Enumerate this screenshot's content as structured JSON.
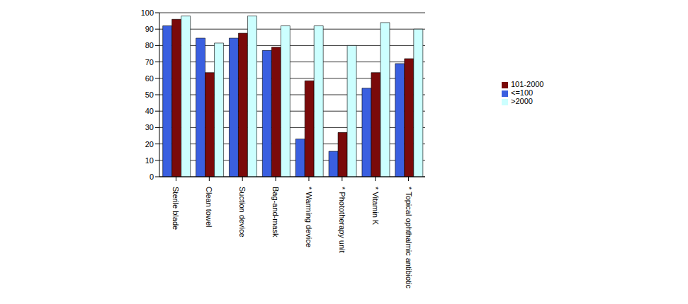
{
  "chart_data": {
    "type": "bar",
    "categories": [
      "Sterile blade",
      "Clean towel",
      "Suction device",
      "Bag-and-mask",
      "* Warming device",
      "* Phototherapy unit",
      "* Vitamin K",
      "* Topical ophthalmic antibiotic"
    ],
    "series": [
      {
        "name": "<=100",
        "color": "#3a5fe0",
        "values": [
          92,
          84.5,
          84.5,
          77,
          23,
          15.5,
          54,
          69
        ]
      },
      {
        "name": "101-2000",
        "color": "#7a0a0a",
        "values": [
          96,
          63.5,
          87.5,
          79,
          58.5,
          27,
          63.5,
          72
        ]
      },
      {
        "name": ">2000",
        "color": "#ccffff",
        "values": [
          98,
          81.5,
          98,
          92,
          92,
          80,
          94,
          90
        ]
      }
    ],
    "ylim": [
      0,
      100
    ],
    "yticks": [
      0,
      10,
      20,
      30,
      40,
      50,
      60,
      70,
      80,
      90,
      100
    ],
    "grid": true,
    "legend": "right"
  }
}
